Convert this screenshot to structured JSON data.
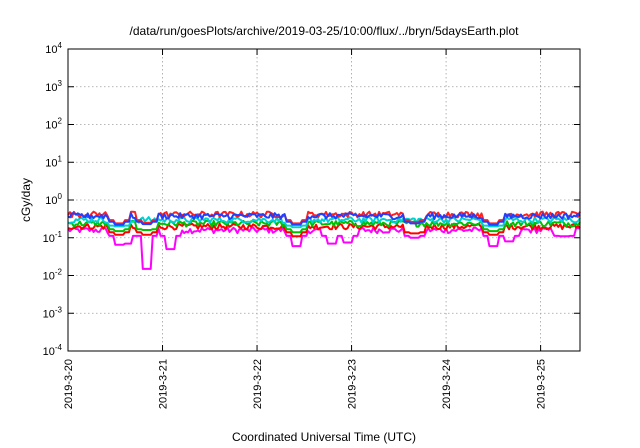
{
  "chart_data": {
    "type": "line",
    "title": "/data/run/goesPlots/archive/2019-03-25/10:00/flux/../bryn/5daysEarth.plot",
    "xlabel": "Coordinated Universal Time (UTC)",
    "ylabel": "cGy/day",
    "yscale": "log",
    "ylim": [
      0.0001,
      10000
    ],
    "y_ticks": [
      {
        "value": 0.0001,
        "base": "10",
        "exp": "-4"
      },
      {
        "value": 0.001,
        "base": "10",
        "exp": "-3"
      },
      {
        "value": 0.01,
        "base": "10",
        "exp": "-2"
      },
      {
        "value": 0.1,
        "base": "10",
        "exp": "-1"
      },
      {
        "value": 1,
        "base": "10",
        "exp": "0"
      },
      {
        "value": 10,
        "base": "10",
        "exp": "1"
      },
      {
        "value": 100,
        "base": "10",
        "exp": "2"
      },
      {
        "value": 1000,
        "base": "10",
        "exp": "3"
      },
      {
        "value": 10000,
        "base": "10",
        "exp": "4"
      }
    ],
    "xlim": [
      "2019-03-20T00:00",
      "2019-03-25T10:00"
    ],
    "x_ticks": [
      "2019-3-20",
      "2019-3-21",
      "2019-3-22",
      "2019-3-23",
      "2019-3-24",
      "2019-3-25"
    ],
    "grid": true,
    "series": [
      {
        "color": "#ff00ff",
        "baseline": 0.16,
        "dips": [
          [
            "2019-03-20T13:00",
            0.065
          ],
          [
            "2019-03-20T15:00",
            0.07
          ],
          [
            "2019-03-20T20:00",
            0.015
          ],
          [
            "2019-03-21T02:00",
            0.05
          ],
          [
            "2019-03-22T10:00",
            0.06
          ],
          [
            "2019-03-22T19:00",
            0.07
          ],
          [
            "2019-03-22T23:00",
            0.075
          ],
          [
            "2019-03-23T16:00",
            0.1
          ],
          [
            "2019-03-24T12:00",
            0.06
          ],
          [
            "2019-03-24T16:00",
            0.08
          ],
          [
            "2019-03-25T06:00",
            0.11
          ]
        ]
      },
      {
        "color": "#ff0000",
        "baseline": 0.2,
        "dips": [
          [
            "2019-03-20T13:00",
            0.12
          ],
          [
            "2019-03-20T20:00",
            0.12
          ],
          [
            "2019-03-22T10:00",
            0.11
          ],
          [
            "2019-03-23T16:00",
            0.13
          ],
          [
            "2019-03-24T12:00",
            0.12
          ]
        ]
      },
      {
        "color": "#00c000",
        "baseline": 0.24,
        "dips": [
          [
            "2019-03-20T13:00",
            0.15
          ],
          [
            "2019-03-20T20:00",
            0.16
          ],
          [
            "2019-03-22T10:00",
            0.14
          ],
          [
            "2019-03-24T12:00",
            0.15
          ]
        ]
      },
      {
        "color": "#00d0d0",
        "baseline": 0.3,
        "dips": [
          [
            "2019-03-20T13:00",
            0.2
          ],
          [
            "2019-03-22T10:00",
            0.19
          ],
          [
            "2019-03-24T12:00",
            0.2
          ]
        ]
      },
      {
        "color": "#ff2020",
        "baseline": 0.42,
        "dips": [
          [
            "2019-03-20T13:00",
            0.24
          ],
          [
            "2019-03-20T20:00",
            0.25
          ],
          [
            "2019-03-22T10:00",
            0.24
          ],
          [
            "2019-03-23T16:00",
            0.26
          ],
          [
            "2019-03-24T12:00",
            0.24
          ]
        ]
      },
      {
        "color": "#2040ff",
        "baseline": 0.38,
        "dips": [
          [
            "2019-03-20T13:00",
            0.22
          ],
          [
            "2019-03-20T20:00",
            0.23
          ],
          [
            "2019-03-22T10:00",
            0.22
          ],
          [
            "2019-03-23T16:00",
            0.24
          ],
          [
            "2019-03-24T12:00",
            0.22
          ]
        ]
      }
    ]
  }
}
